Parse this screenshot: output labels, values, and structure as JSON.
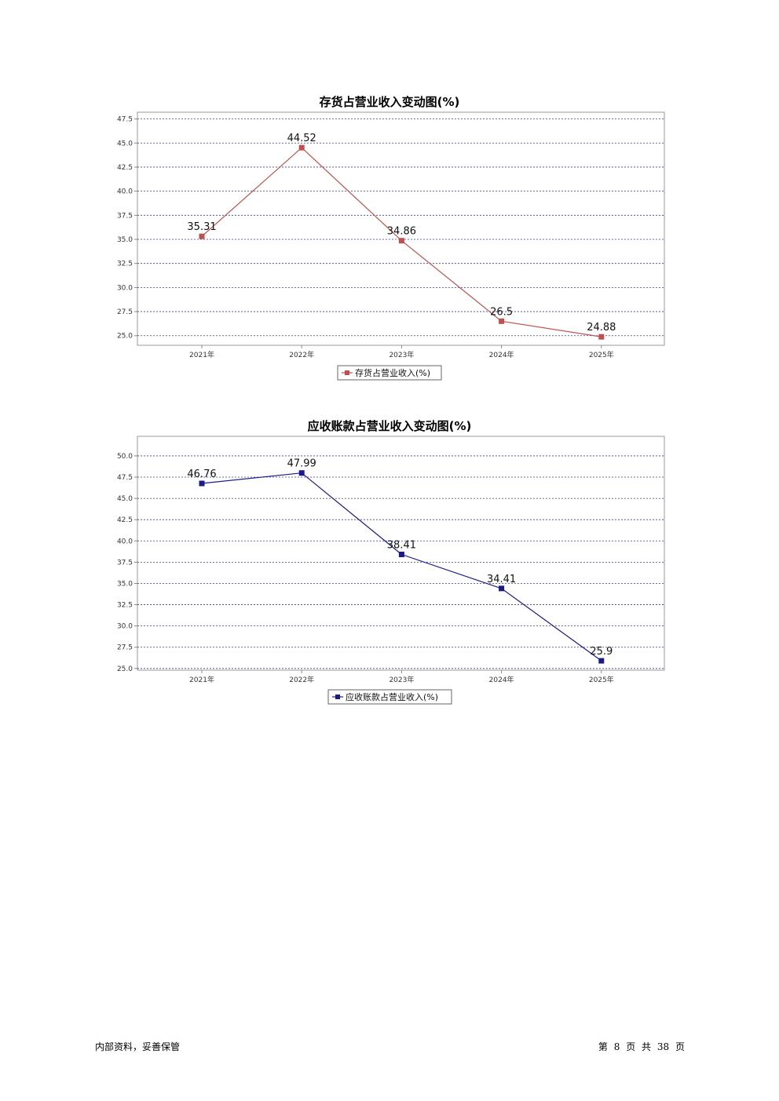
{
  "chart_data": [
    {
      "type": "line",
      "title": "存货占营业收入变动图(%)",
      "categories": [
        "2021年",
        "2022年",
        "2023年",
        "2024年",
        "2025年"
      ],
      "series": [
        {
          "name": "存货占营业收入(%)",
          "values": [
            35.31,
            44.52,
            34.86,
            26.5,
            24.88
          ],
          "labels": [
            "35.31",
            "44.52",
            "34.86",
            "26.5",
            "24.88"
          ],
          "color": "#c0504d"
        }
      ],
      "y_ticks": [
        "25.0",
        "27.5",
        "30.0",
        "32.5",
        "35.0",
        "37.5",
        "40.0",
        "42.5",
        "45.0",
        "47.5"
      ],
      "ylim": [
        24.0,
        48.2
      ],
      "grid": true,
      "grid_color": "#3333cc",
      "legend_position": "bottom"
    },
    {
      "type": "line",
      "title": "应收账款占营业收入变动图(%)",
      "categories": [
        "2021年",
        "2022年",
        "2023年",
        "2024年",
        "2025年"
      ],
      "series": [
        {
          "name": "应收账款占营业收入(%)",
          "values": [
            46.76,
            47.99,
            38.41,
            34.41,
            25.9
          ],
          "labels": [
            "46.76",
            "47.99",
            "38.41",
            "34.41",
            "25.9"
          ],
          "color": "#1a1a8c"
        }
      ],
      "y_ticks": [
        "25.0",
        "27.5",
        "30.0",
        "32.5",
        "35.0",
        "37.5",
        "40.0",
        "42.5",
        "45.0",
        "47.5",
        "50.0"
      ],
      "ylim": [
        24.8,
        52.3
      ],
      "grid": true,
      "grid_color": "#3333cc",
      "legend_position": "bottom"
    }
  ],
  "footer": {
    "left": "内部资料，妥善保管",
    "page_prefix": "第",
    "page_current": "8",
    "page_mid": "页",
    "total_prefix": "共",
    "page_total": "38",
    "page_suffix": "页"
  }
}
